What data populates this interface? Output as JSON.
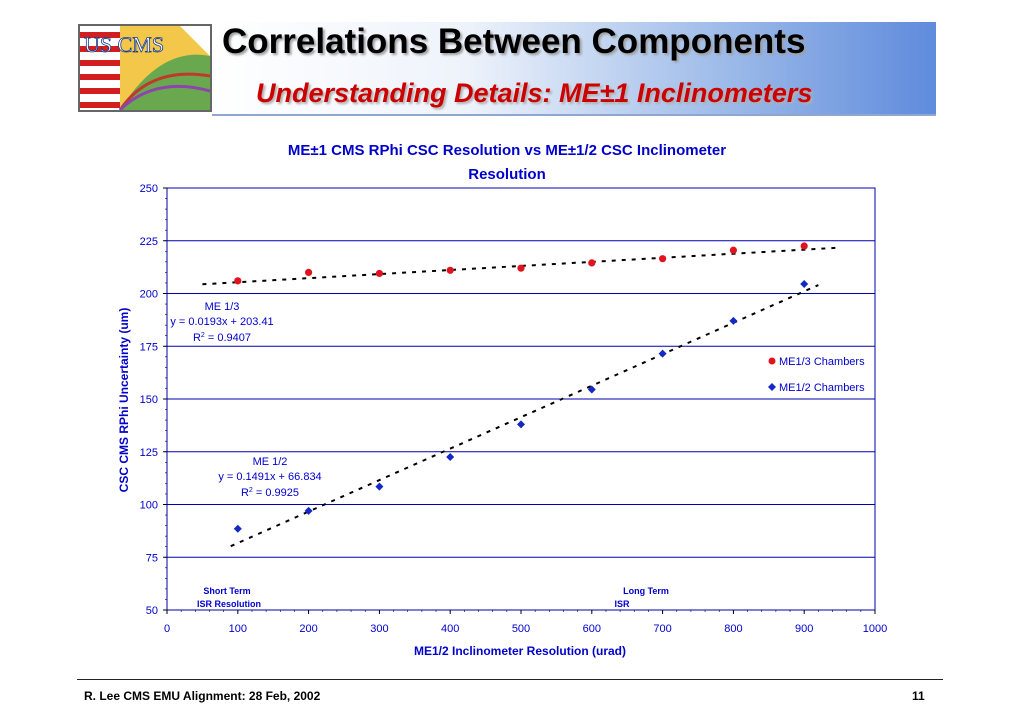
{
  "header": {
    "title": "Correlations Between Components",
    "subtitle": "Understanding Details: ME±1 Inclinometers",
    "logo_text": "US CMS"
  },
  "footer": {
    "left": "R. Lee CMS EMU Alignment: 28 Feb, 2002",
    "page": "11"
  },
  "colors": {
    "me13": "#e0141e",
    "me12": "#1428c8",
    "axis_text": "#0000cc",
    "grid": "#0000aa"
  },
  "chart_data": {
    "type": "scatter",
    "title_line1": "ME±1 CMS RPhi CSC Resolution vs ME±1/2 CSC Inclinometer",
    "title_line2": "Resolution",
    "xlabel": "ME1/2 Inclinometer Resolution (urad)",
    "ylabel": "CSC CMS RPhi Uncertainty (um)",
    "xlim": [
      0,
      1000
    ],
    "ylim": [
      50,
      250
    ],
    "x_ticks": [
      "0",
      "100",
      "200",
      "300",
      "400",
      "500",
      "600",
      "700",
      "800",
      "900",
      "1000"
    ],
    "y_ticks": [
      "50",
      "75",
      "100",
      "125",
      "150",
      "175",
      "200",
      "225",
      "250"
    ],
    "grid": "horizontal",
    "legend_position": "right",
    "series": [
      {
        "name": "ME1/3 Chambers",
        "marker": "circle",
        "color": "#e0141e",
        "x": [
          100,
          200,
          300,
          400,
          500,
          600,
          700,
          800,
          900
        ],
        "y": [
          206,
          210,
          209.5,
          211,
          212,
          214.5,
          216.5,
          220.5,
          222.5
        ],
        "trend": {
          "slope": 0.0193,
          "intercept": 203.41,
          "x_range": [
            50,
            950
          ]
        }
      },
      {
        "name": "ME1/2 Chambers",
        "marker": "diamond",
        "color": "#1428c8",
        "x": [
          100,
          200,
          300,
          400,
          500,
          600,
          700,
          800,
          900
        ],
        "y": [
          88.5,
          97,
          108.5,
          122.5,
          138,
          154.5,
          171.5,
          187,
          204.5
        ],
        "trend": {
          "slope": 0.1491,
          "intercept": 66.834,
          "x_range": [
            90,
            920
          ]
        }
      }
    ],
    "annotations": {
      "me13_name": "ME 1/3",
      "me13_eq": "y = 0.0193x + 203.41",
      "me13_r2_label": "R",
      "me13_r2_exp": "2",
      "me13_r2_val": " = 0.9407",
      "me12_name": "ME 1/2",
      "me12_eq": "y = 0.1491x + 66.834",
      "me12_r2_label": "R",
      "me12_r2_exp": "2",
      "me12_r2_val": " = 0.9925",
      "short_term_1": "Short Term",
      "short_term_2": "ISR Resolution",
      "long_term_1": "Long Term",
      "long_term_2": "ISR"
    }
  }
}
